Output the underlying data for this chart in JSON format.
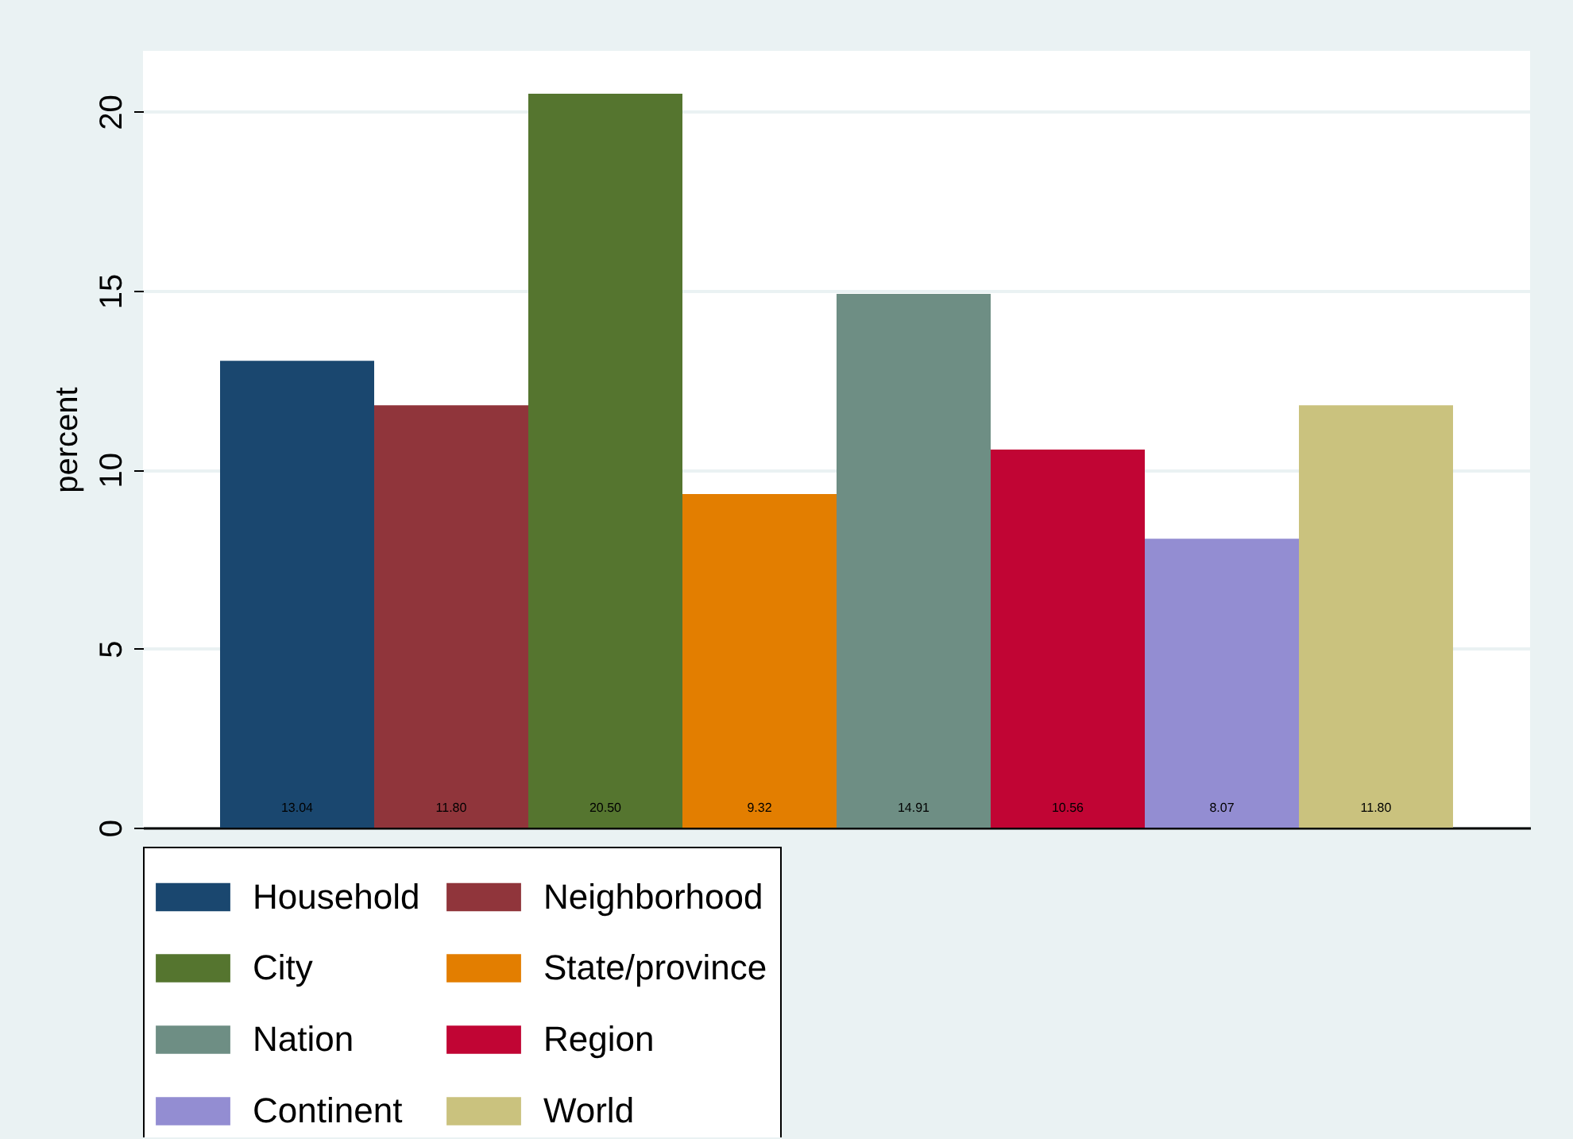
{
  "chart_data": {
    "type": "bar",
    "ylabel": "percent",
    "categories": [
      null
    ],
    "ylim": [
      0,
      21.7
    ],
    "yticks": [
      0,
      5,
      10,
      15,
      20
    ],
    "grid": "y",
    "legend": "bottom",
    "series": [
      {
        "name": "Household",
        "color": "#1a476f",
        "values": [
          13.04
        ],
        "value_labels": [
          "13.04"
        ]
      },
      {
        "name": "Neighborhood",
        "color": "#90353b",
        "values": [
          11.8
        ],
        "value_labels": [
          "11.80"
        ]
      },
      {
        "name": "City",
        "color": "#55752f",
        "values": [
          20.5
        ],
        "value_labels": [
          "20.50"
        ]
      },
      {
        "name": "State/province",
        "color": "#e37e00",
        "values": [
          9.32
        ],
        "value_labels": [
          "9.32"
        ]
      },
      {
        "name": "Nation",
        "color": "#6e8e84",
        "values": [
          14.91
        ],
        "value_labels": [
          "14.91"
        ]
      },
      {
        "name": "Region",
        "color": "#c10534",
        "values": [
          10.56
        ],
        "value_labels": [
          "10.56"
        ]
      },
      {
        "name": "Continent",
        "color": "#938dd2",
        "values": [
          8.07
        ],
        "value_labels": [
          "8.07"
        ]
      },
      {
        "name": "World",
        "color": "#cac27e",
        "values": [
          11.8
        ],
        "value_labels": [
          "11.80"
        ]
      }
    ]
  }
}
